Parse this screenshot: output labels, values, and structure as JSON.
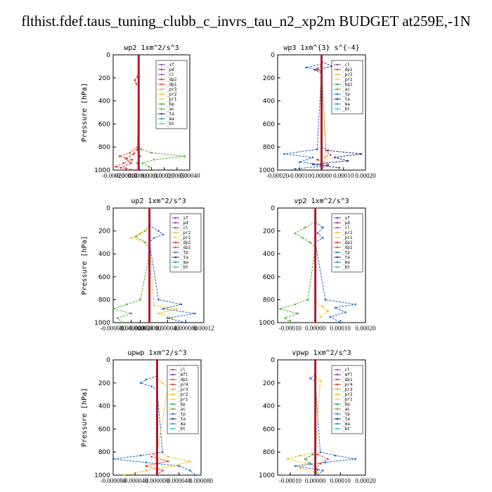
{
  "title": "flthist.fdef.taus_tuning_clubb_c_invrs_tau_n2_xp2m  BUDGET at259E,-1N",
  "colors": {
    "sf": "#7b2fbe",
    "pd": "#8b2a8f",
    "cl": "#8a3fa8",
    "mfl": "#6b2d8f",
    "dp2": "#e0221e",
    "dp1": "#e8332b",
    "dp4": "#e0221e",
    "pr4": "#e0221e",
    "pr3": "#f2a30f",
    "pr2": "#f5b800",
    "pr1": "#f7d21d",
    "bp": "#1f9b3b",
    "bp1": "#1f9b3b",
    "ac": "#4caf2a",
    "tp": "#1c66c9",
    "ta": "#1a237e",
    "ma": "#1a7fbf",
    "bt": "#18c4c9"
  },
  "chart_data": [
    {
      "type": "line",
      "title": "wp2   1xm^2/s^3",
      "ylabel": "Pressure [hPa]",
      "ylim": [
        1000,
        0
      ],
      "yticks": [
        "0",
        "200",
        "400",
        "600",
        "800",
        "1000"
      ],
      "xlim": [
        -0.0002,
        0.0004
      ],
      "xticks": [
        "-0.00020",
        "-0.00010",
        "0.00000",
        "0.00010",
        "0.00020",
        "0.00030",
        "0.00040"
      ],
      "legend": [
        "_sf",
        "_pd",
        "_cl",
        "_dp2",
        "_dp1",
        "_pr3",
        "_pr2",
        "_pr1",
        "_bp",
        "_ac",
        "_ta",
        "_ma",
        "_bt"
      ],
      "legend_keys": [
        "sf",
        "pd",
        "cl",
        "dp2",
        "dp1",
        "pr3",
        "pr2",
        "pr1",
        "bp",
        "ac",
        "ta",
        "ma",
        "bt"
      ],
      "legend_position": "top-right",
      "series": [
        {
          "key": "ac",
          "p": [
            780,
            820,
            850,
            880,
            910,
            940,
            970,
            1000
          ],
          "x": [
            0,
            2e-05,
            0.0001,
            0.00036,
            0.00012,
            3e-05,
            8e-05,
            0.00012
          ]
        },
        {
          "key": "dp1",
          "p": [
            150,
            190,
            220,
            250,
            280,
            800,
            850,
            880,
            910,
            940,
            970,
            1000
          ],
          "x": [
            0,
            -1e-05,
            -3e-05,
            -2e-05,
            0,
            -1e-05,
            -7e-05,
            -0.00015,
            -5e-05,
            -0.00012,
            -0.00018,
            -2e-05
          ]
        },
        {
          "key": "dp2",
          "p": [
            820,
            860,
            900,
            940,
            980
          ],
          "x": [
            -1e-05,
            -4e-05,
            -0.0001,
            -6e-05,
            -0.00014
          ]
        },
        {
          "key": "tp",
          "p": [
            820,
            880,
            940,
            1000
          ],
          "x": [
            0,
            1e-05,
            -1e-05,
            1e-05
          ]
        },
        {
          "key": "pd",
          "p": [
            0,
            1000
          ],
          "x": [
            0,
            0
          ]
        }
      ]
    },
    {
      "type": "line",
      "title": "wp3   1xm^{3} s^{-4}",
      "ylabel": "",
      "ylim": [
        1000,
        0
      ],
      "yticks": [
        "0",
        "200",
        "400",
        "600",
        "800",
        "1000"
      ],
      "xlim": [
        -0.0002,
        0.0002
      ],
      "xticks": [
        "-0.00020",
        "-0.00010",
        "0.00000",
        "0.00010",
        "0.00020"
      ],
      "legend": [
        "_cl",
        "_dp1",
        "_pr2",
        "_pr1",
        "_bp1",
        "_ac",
        "_tp",
        "_ta",
        "_ma",
        "_bt"
      ],
      "legend_keys": [
        "cl",
        "dp1",
        "pr2",
        "pr1",
        "bp1",
        "ac",
        "tp",
        "ta",
        "ma",
        "bt"
      ],
      "legend_position": "top-right",
      "series": [
        {
          "key": "ta",
          "p": [
            60,
            100,
            130,
            160,
            800,
            830,
            860,
            890,
            920,
            950,
            980
          ],
          "x": [
            0,
            5e-05,
            -3e-05,
            0,
            0,
            3e-05,
            0.00018,
            6e-05,
            0.00012,
            -4e-05,
            8e-05
          ]
        },
        {
          "key": "tp",
          "p": [
            80,
            110,
            140,
            820,
            860,
            890,
            930,
            960,
            990
          ],
          "x": [
            0,
            -7e-05,
            0,
            -2e-05,
            -0.00017,
            -4e-05,
            -0.0001,
            3e-05,
            -0.00012
          ]
        },
        {
          "key": "dp1",
          "p": [
            90,
            120,
            150,
            830,
            870,
            910,
            950,
            990
          ],
          "x": [
            0,
            -2e-05,
            0,
            2e-05,
            4e-05,
            -2e-05,
            3e-05,
            0
          ]
        },
        {
          "key": "pr1",
          "p": [
            100,
            900,
            950
          ],
          "x": [
            0,
            2e-05,
            0
          ]
        },
        {
          "key": "cl",
          "p": [
            0,
            1000
          ],
          "x": [
            0,
            0
          ]
        }
      ]
    },
    {
      "type": "line",
      "title": "up2   1xm^2/s^3",
      "ylabel": "Pressure [hPa]",
      "ylim": [
        1000,
        0
      ],
      "yticks": [
        "0",
        "200",
        "400",
        "600",
        "800",
        "1000"
      ],
      "xlim": [
        -8e-05,
        0.00012
      ],
      "xticks": [
        "-0.000080",
        "-0.000040",
        "-0.000020",
        "0.000000",
        "0.000040",
        "0.000080",
        "0.00012"
      ],
      "xtick_positions": [
        -8e-05,
        -4e-05,
        -2e-05,
        0,
        4e-05,
        8e-05,
        0.00012
      ],
      "legend": [
        "_sf",
        "_pd",
        "_cl",
        "_pr2",
        "_pr1",
        "_dp2",
        "_dp1",
        "_tp",
        "_ta",
        "_ma",
        "_bt"
      ],
      "legend_keys": [
        "sf",
        "pd",
        "cl",
        "pr2",
        "pr1",
        "dp2",
        "dp1",
        "tp",
        "ta",
        "ma",
        "bt"
      ],
      "legend_position": "top-right",
      "series": [
        {
          "key": "ac",
          "p": [
            150,
            200,
            250,
            300,
            350,
            400,
            800,
            840,
            880,
            920,
            960,
            1000
          ],
          "x": [
            0,
            -1e-05,
            -3e-05,
            -1e-05,
            0,
            0,
            -2e-05,
            -5e-05,
            -8e-05,
            -4e-05,
            -7e-05,
            -6e-05
          ]
        },
        {
          "key": "pr2",
          "p": [
            180,
            220,
            260,
            300,
            850,
            880,
            920,
            960
          ],
          "x": [
            0,
            -2e-05,
            -4e-05,
            0,
            1e-05,
            6e-05,
            2e-05,
            5e-05
          ]
        },
        {
          "key": "tp",
          "p": [
            150,
            200,
            230,
            260,
            300,
            800,
            840,
            880,
            920,
            960,
            1000
          ],
          "x": [
            0,
            2e-05,
            3e-05,
            1e-05,
            0,
            2e-05,
            7e-05,
            3e-05,
            0.0001,
            4e-05,
            8e-05
          ]
        },
        {
          "key": "dp1",
          "p": [
            0,
            1000
          ],
          "x": [
            0,
            0
          ]
        }
      ]
    },
    {
      "type": "line",
      "title": "vp2   1xm^2/s^3",
      "ylabel": "",
      "ylim": [
        1000,
        0
      ],
      "yticks": [
        "0",
        "200",
        "400",
        "600",
        "800",
        "1000"
      ],
      "xlim": [
        -0.00015,
        0.0002
      ],
      "xticks": [
        "-0.00010",
        "0.00000",
        "0.00010",
        "0.00020"
      ],
      "xtick_positions": [
        -0.0001,
        0,
        0.0001,
        0.0002
      ],
      "legend": [
        "_sf",
        "_pd",
        "_cl",
        "_pr2",
        "_pr1",
        "_dp2",
        "_dp1",
        "_tp",
        "_ta",
        "_ma",
        "_bt"
      ],
      "legend_keys": [
        "sf",
        "pd",
        "cl",
        "pr2",
        "pr1",
        "dp2",
        "dp1",
        "tp",
        "ta",
        "ma",
        "bt"
      ],
      "legend_position": "top-right",
      "series": [
        {
          "key": "ac",
          "p": [
            120,
            170,
            220,
            260,
            300,
            340,
            800,
            840,
            880,
            920,
            960,
            1000
          ],
          "x": [
            0,
            -4e-05,
            -8e-05,
            -5e-05,
            -2e-05,
            0,
            -3e-05,
            -8e-05,
            -0.00014,
            -7e-05,
            -0.00012,
            -0.0001
          ]
        },
        {
          "key": "tp",
          "p": [
            120,
            170,
            220,
            260,
            300,
            800,
            840,
            870,
            910,
            950,
            1000
          ],
          "x": [
            0,
            3e-05,
            1e-05,
            3e-05,
            0,
            4e-05,
            0.00016,
            8e-05,
            0.00012,
            6e-05,
            0.0001
          ]
        },
        {
          "key": "pr2",
          "p": [
            820,
            860,
            900,
            950
          ],
          "x": [
            0,
            3e-05,
            5e-05,
            2e-05
          ]
        },
        {
          "key": "dp1",
          "p": [
            0,
            1000
          ],
          "x": [
            0,
            0
          ]
        }
      ]
    },
    {
      "type": "line",
      "title": "upwp   1xm^2/s^3",
      "ylabel": "Pressure [hPa]",
      "ylim": [
        1000,
        0
      ],
      "yticks": [
        "0",
        "200",
        "400",
        "600",
        "800",
        "1000"
      ],
      "xlim": [
        -8e-05,
        8e-05
      ],
      "xticks": [
        "-0.000080",
        "-0.000040",
        "0.000000",
        "0.000040",
        "0.000080"
      ],
      "legend": [
        "_cl",
        "_mfl",
        "_dp1",
        "_pr4",
        "_pr3",
        "_pr2",
        "_pr1",
        "_bp",
        "_ac",
        "_tp",
        "_ta",
        "_ma",
        "_bt"
      ],
      "legend_keys": [
        "cl",
        "mfl",
        "dp1",
        "pr4",
        "pr3",
        "pr2",
        "pr1",
        "bp",
        "ac",
        "tp",
        "ta",
        "ma",
        "bt"
      ],
      "legend_position": "top-right",
      "series": [
        {
          "key": "tp",
          "p": [
            140,
            170,
            200,
            230,
            260,
            800,
            830,
            860,
            890,
            920,
            960,
            1000
          ],
          "x": [
            0,
            -2e-05,
            -3e-05,
            -1e-05,
            0,
            1e-05,
            -3e-05,
            -8e-05,
            -2e-05,
            4e-05,
            6e-05,
            7e-05
          ]
        },
        {
          "key": "pr2",
          "p": [
            160,
            200,
            240,
            800,
            840,
            880,
            920,
            960,
            1000
          ],
          "x": [
            0,
            1e-05,
            2e-05,
            0,
            2e-05,
            6e-05,
            3e-05,
            -2e-05,
            -6e-05
          ]
        },
        {
          "key": "dp1",
          "p": [
            800,
            840,
            880,
            920,
            960,
            1000
          ],
          "x": [
            0,
            -1e-05,
            2e-05,
            -2e-05,
            1e-05,
            0
          ]
        },
        {
          "key": "mfl",
          "p": [
            0,
            1000
          ],
          "x": [
            0,
            0
          ]
        }
      ]
    },
    {
      "type": "line",
      "title": "vpwp   1xm^2/s^3",
      "ylabel": "",
      "ylim": [
        1000,
        0
      ],
      "yticks": [
        "0",
        "200",
        "400",
        "600",
        "800",
        "1000"
      ],
      "xlim": [
        -0.00015,
        0.0002
      ],
      "xticks": [
        "-0.00010",
        "0.00000",
        "0.00010",
        "0.00020"
      ],
      "xtick_positions": [
        -0.0001,
        0,
        0.0001,
        0.0002
      ],
      "legend": [
        "_cl",
        "_mfl",
        "_dp1",
        "_pr4",
        "_pr3",
        "_pr2",
        "_pr1",
        "_bp",
        "_ac",
        "_tp",
        "_ta",
        "_ma",
        "_bt"
      ],
      "legend_keys": [
        "cl",
        "mfl",
        "dp1",
        "pr4",
        "pr3",
        "pr2",
        "pr1",
        "bp",
        "ac",
        "tp",
        "ta",
        "ma",
        "bt"
      ],
      "legend_position": "top-right",
      "series": [
        {
          "key": "tp",
          "p": [
            130,
            160,
            190,
            800,
            830,
            860,
            890,
            920,
            960,
            1000
          ],
          "x": [
            0,
            -2e-05,
            0,
            2e-05,
            8e-05,
            0.00016,
            4e-05,
            -8e-05,
            3e-05,
            1e-05
          ]
        },
        {
          "key": "pr2",
          "p": [
            140,
            180,
            800,
            830,
            860,
            900,
            940,
            980
          ],
          "x": [
            0,
            2e-05,
            0,
            -6e-05,
            -0.00011,
            -3e-05,
            -6e-05,
            1e-05
          ]
        },
        {
          "key": "bp",
          "p": [
            820,
            860,
            900,
            950,
            1000
          ],
          "x": [
            -1e-05,
            -4e-05,
            -2e-05,
            1e-05,
            0
          ]
        },
        {
          "key": "dp1",
          "p": [
            820,
            860,
            900,
            950
          ],
          "x": [
            1e-05,
            5e-05,
            2e-05,
            0
          ]
        },
        {
          "key": "mfl",
          "p": [
            0,
            1000
          ],
          "x": [
            0,
            0
          ]
        }
      ]
    }
  ]
}
